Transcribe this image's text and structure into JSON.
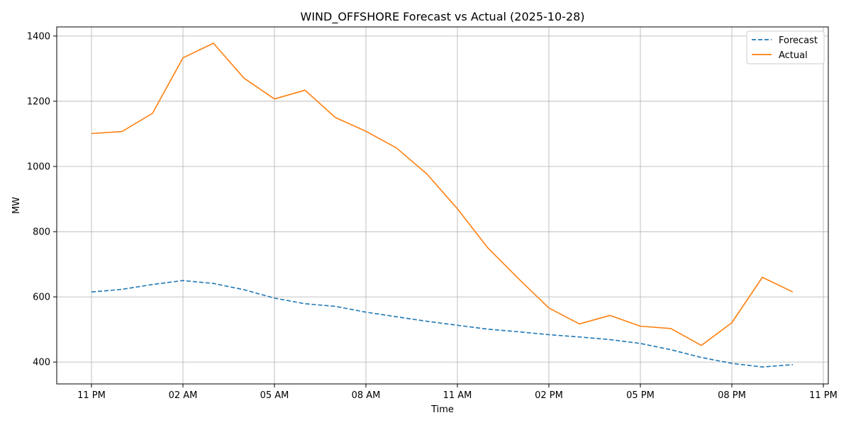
{
  "chart_data": {
    "type": "line",
    "title": "WIND_OFFSHORE Forecast vs Actual (2025-10-28)",
    "xlabel": "Time",
    "ylabel": "MW",
    "x": [
      "11 PM",
      "12 AM",
      "01 AM",
      "02 AM",
      "03 AM",
      "04 AM",
      "05 AM",
      "06 AM",
      "07 AM",
      "08 AM",
      "09 AM",
      "10 AM",
      "11 AM",
      "12 PM",
      "01 PM",
      "02 PM",
      "03 PM",
      "04 PM",
      "05 PM",
      "06 PM",
      "07 PM",
      "08 PM",
      "09 PM",
      "10 PM"
    ],
    "x_ticks": [
      "11 PM",
      "02 AM",
      "05 AM",
      "08 AM",
      "11 AM",
      "02 PM",
      "05 PM",
      "08 PM",
      "11 PM"
    ],
    "y_ticks": [
      400,
      600,
      800,
      1000,
      1200,
      1400
    ],
    "ylim": [
      333,
      1428
    ],
    "grid": true,
    "legend_position": "top-right",
    "series": [
      {
        "name": "Forecast",
        "color": "#1f77b4",
        "style": "dashed",
        "values": [
          615,
          623,
          638,
          650,
          641,
          622,
          596,
          579,
          571,
          553,
          539,
          525,
          513,
          501,
          493,
          484,
          477,
          469,
          457,
          438,
          414,
          396,
          385,
          392
        ]
      },
      {
        "name": "Actual",
        "color": "#ff7f0e",
        "style": "solid",
        "values": [
          1101,
          1107,
          1163,
          1333,
          1378,
          1271,
          1207,
          1234,
          1150,
          1108,
          1057,
          977,
          870,
          750,
          656,
          566,
          517,
          543,
          510,
          503,
          451,
          521,
          660,
          615
        ]
      }
    ]
  }
}
